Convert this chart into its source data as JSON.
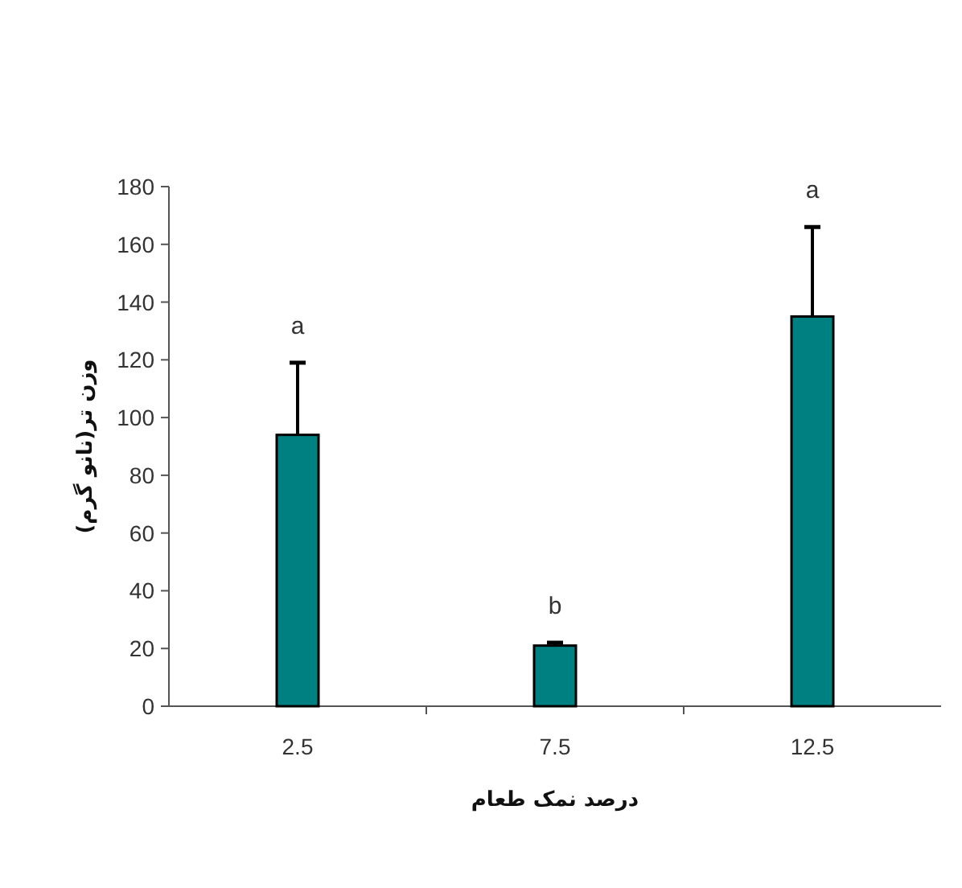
{
  "chart_data": {
    "type": "bar",
    "xlabel": "درصد نمک طعام",
    "ylabel": "وزن تر(نانو گرم)",
    "categories": [
      "2.5",
      "7.5",
      "12.5"
    ],
    "values": [
      94,
      21,
      135
    ],
    "errors": [
      25,
      1,
      31
    ],
    "color": "#008080",
    "ylim": [
      0,
      180
    ],
    "yticks": [
      0,
      20,
      40,
      60,
      80,
      100,
      120,
      140,
      160,
      180
    ],
    "annotations": [
      "a",
      "b",
      "a"
    ]
  }
}
